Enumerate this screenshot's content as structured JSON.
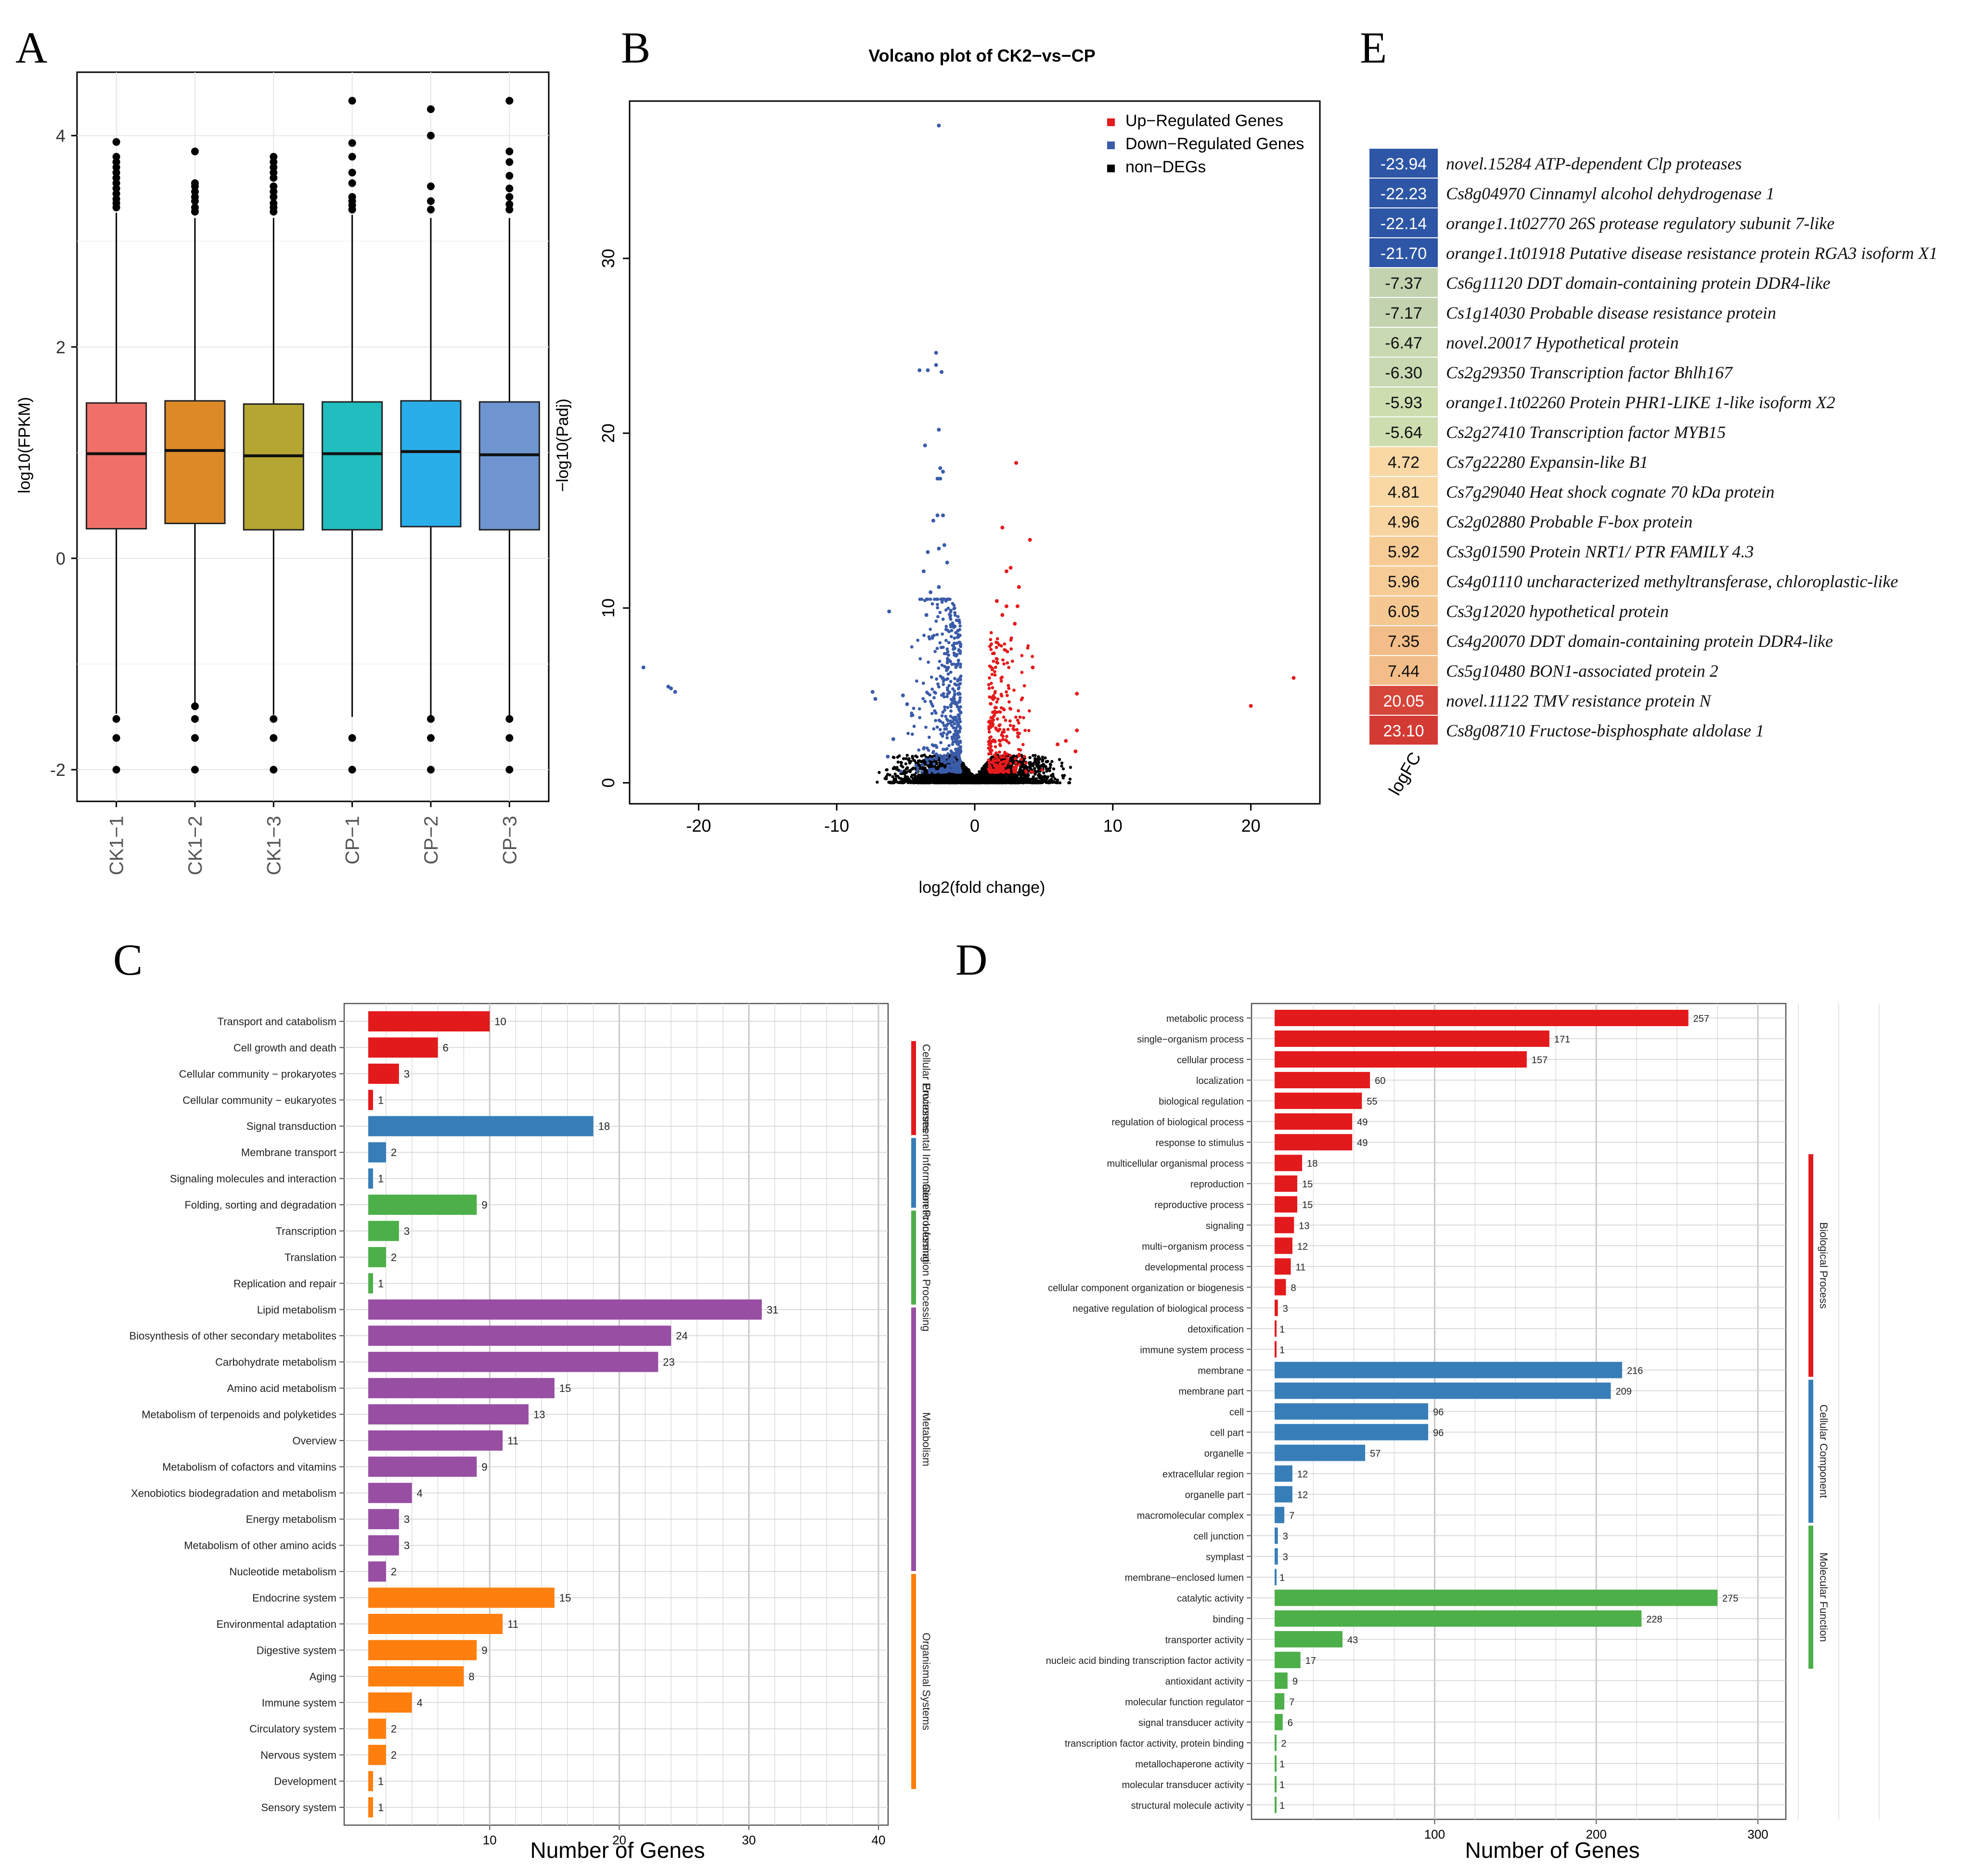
{
  "colors": {
    "box": [
      "#F07069",
      "#DC8A28",
      "#B5A532",
      "#21BDBF",
      "#2AAEE9",
      "#6E95D0"
    ],
    "up": "#E41A1C",
    "down": "#3A5BA8",
    "nondeg": "#000000",
    "kegg_groups": [
      "#E31A1C",
      "#377EB8",
      "#4DAF4A",
      "#984EA3",
      "#FF7F0E"
    ],
    "go_groups": [
      "#E31A1C",
      "#377EB8",
      "#4DAF4A"
    ]
  },
  "chart_data": [
    {
      "id": "A",
      "type": "box",
      "panel_label": "A",
      "ylabel": "log10(FPKM)",
      "ylim": [
        -2.3,
        4.6
      ],
      "yticks": [
        -2,
        0,
        2,
        4
      ],
      "categories": [
        "CK1−1",
        "CK1−2",
        "CK1−3",
        "CP−1",
        "CP−2",
        "CP−3"
      ],
      "boxes": [
        {
          "q1": 0.28,
          "median": 0.99,
          "q3": 1.47,
          "low": -1.47,
          "high": 3.27
        },
        {
          "q1": 0.33,
          "median": 1.02,
          "q3": 1.49,
          "low": -1.4,
          "high": 3.22
        },
        {
          "q1": 0.27,
          "median": 0.97,
          "q3": 1.46,
          "low": -1.48,
          "high": 3.22
        },
        {
          "q1": 0.27,
          "median": 0.99,
          "q3": 1.48,
          "low": -1.5,
          "high": 3.25
        },
        {
          "q1": 0.3,
          "median": 1.01,
          "q3": 1.49,
          "low": -1.5,
          "high": 3.22
        },
        {
          "q1": 0.27,
          "median": 0.98,
          "q3": 1.48,
          "low": -1.5,
          "high": 3.22
        }
      ],
      "outliers_high": [
        [
          3.32,
          3.36,
          3.4,
          3.45,
          3.5,
          3.55,
          3.6,
          3.65,
          3.7,
          3.75,
          3.8,
          3.94
        ],
        [
          3.28,
          3.32,
          3.38,
          3.42,
          3.47,
          3.52,
          3.55,
          3.85
        ],
        [
          3.28,
          3.32,
          3.36,
          3.42,
          3.47,
          3.52,
          3.6,
          3.65,
          3.7,
          3.75,
          3.8
        ],
        [
          3.3,
          3.34,
          3.38,
          3.42,
          3.55,
          3.65,
          3.8,
          3.93,
          4.33
        ],
        [
          3.3,
          3.38,
          3.52,
          4.0,
          4.25
        ],
        [
          3.3,
          3.35,
          3.42,
          3.5,
          3.62,
          3.75,
          3.85,
          4.33
        ]
      ],
      "outliers_low": [
        [
          -1.52,
          -1.7,
          -2.0
        ],
        [
          -1.4,
          -1.52,
          -1.7,
          -2.0
        ],
        [
          -1.52,
          -1.7,
          -2.0
        ],
        [
          -1.7,
          -2.0
        ],
        [
          -1.52,
          -1.7,
          -2.0
        ],
        [
          -1.52,
          -1.7,
          -2.0
        ]
      ]
    },
    {
      "id": "B",
      "type": "scatter",
      "panel_label": "B",
      "title": "Volcano plot of CK2−vs−CP",
      "xlabel": "log2(fold change)",
      "ylabel": "−log10(Padj)",
      "xlim": [
        -25,
        25
      ],
      "ylim": [
        -1.2,
        39
      ],
      "xticks": [
        -20,
        -10,
        0,
        10,
        20
      ],
      "yticks": [
        0,
        10,
        20,
        30
      ],
      "legend": [
        "Up−Regulated Genes",
        "Down−Regulated Genes",
        "non−DEGs"
      ],
      "legend_position": "top-right",
      "down_points": [
        [
          -2.6,
          37.6
        ],
        [
          -2.8,
          24.6
        ],
        [
          -2.8,
          23.9
        ],
        [
          -4.0,
          23.6
        ],
        [
          -3.4,
          23.6
        ],
        [
          -2.4,
          23.5
        ],
        [
          -2.6,
          20.2
        ],
        [
          -3.6,
          19.3
        ],
        [
          -2.5,
          18.0
        ],
        [
          -2.3,
          17.8
        ],
        [
          -2.5,
          17.4
        ],
        [
          -2.7,
          17.4
        ],
        [
          -2.7,
          15.3
        ],
        [
          -2.3,
          15.3
        ],
        [
          -3.0,
          15.0
        ],
        [
          -2.2,
          13.6
        ],
        [
          -2.6,
          13.4
        ],
        [
          -3.4,
          13.2
        ],
        [
          -2.0,
          12.6
        ],
        [
          -3.7,
          12.1
        ],
        [
          -2.6,
          11.2
        ],
        [
          -3.2,
          10.9
        ],
        [
          -2.3,
          10.5
        ],
        [
          -6.2,
          9.8
        ],
        [
          -3.5,
          9.6
        ],
        [
          -24.0,
          6.6
        ],
        [
          -22.2,
          5.5
        ],
        [
          -22.0,
          5.4
        ],
        [
          -21.7,
          5.2
        ],
        [
          -7.4,
          5.2
        ],
        [
          -7.2,
          4.8
        ],
        [
          -5.2,
          5.0
        ],
        [
          -4.9,
          4.5
        ],
        [
          -5.9,
          2.5
        ],
        [
          -6.3,
          1.5
        ]
      ],
      "up_points": [
        [
          3.0,
          18.3
        ],
        [
          2.0,
          14.6
        ],
        [
          4.0,
          13.9
        ],
        [
          2.6,
          12.3
        ],
        [
          2.3,
          12.1
        ],
        [
          3.2,
          11.2
        ],
        [
          1.6,
          10.4
        ],
        [
          2.3,
          10.1
        ],
        [
          3.1,
          10.1
        ],
        [
          2.0,
          9.6
        ],
        [
          2.9,
          9.1
        ],
        [
          4.2,
          6.6
        ],
        [
          7.4,
          5.1
        ],
        [
          23.1,
          6.0
        ],
        [
          20.0,
          4.4
        ],
        [
          7.4,
          3.0
        ],
        [
          6.6,
          2.4
        ],
        [
          6.0,
          2.2
        ],
        [
          7.3,
          1.8
        ]
      ],
      "down_cluster": {
        "x_range": [
          -6.0,
          -1.0
        ],
        "y_max": 8.5,
        "count": 520
      },
      "up_cluster": {
        "x_range": [
          1.0,
          5.5
        ],
        "y_max": 8.0,
        "count": 300
      },
      "nondeg_cluster": {
        "x_range": [
          -8.5,
          7.0
        ],
        "y_max": 1.6,
        "count": 2600
      }
    },
    {
      "id": "E",
      "type": "table",
      "panel_label": "E",
      "color_label": "logFC",
      "rows": [
        {
          "value": "-23.94",
          "gene": "novel.15284",
          "desc": "ATP-dependent Clp proteases",
          "color": "#2E56A6"
        },
        {
          "value": "-22.23",
          "gene": "Cs8g04970",
          "desc": "Cinnamyl alcohol dehydrogenase 1",
          "color": "#2E56A6"
        },
        {
          "value": "-22.14",
          "gene": "orange1.1t02770",
          "desc": "26S protease regulatory subunit 7-like",
          "color": "#2E56A6"
        },
        {
          "value": "-21.70",
          "gene": "orange1.1t01918",
          "desc": "Putative disease resistance protein RGA3 isoform X1",
          "color": "#2E56A6"
        },
        {
          "value": "-7.37",
          "gene": "Cs6g11120",
          "desc": "DDT domain-containing protein DDR4-like",
          "color": "#C3D3B0"
        },
        {
          "value": "-7.17",
          "gene": "Cs1g14030",
          "desc": "Probable disease resistance protein",
          "color": "#C3D3B0"
        },
        {
          "value": "-6.47",
          "gene": "novel.20017",
          "desc": "Hypothetical protein",
          "color": "#C9D9B2"
        },
        {
          "value": "-6.30",
          "gene": "Cs2g29350",
          "desc": "Transcription factor Bhlh167",
          "color": "#C9D9B2"
        },
        {
          "value": "-5.93",
          "gene": "orange1.1t02260",
          "desc": "Protein PHR1-LIKE 1-like isoform X2",
          "color": "#CEDDB0"
        },
        {
          "value": "-5.64",
          "gene": "Cs2g27410",
          "desc": "Transcription factor MYB15",
          "color": "#CEDDB0"
        },
        {
          "value": "4.72",
          "gene": "Cs7g22280",
          "desc": "Expansin-like B1",
          "color": "#F9D8A6"
        },
        {
          "value": "4.81",
          "gene": "Cs7g29040",
          "desc": "Heat shock cognate 70 kDa protein",
          "color": "#F9D8A6"
        },
        {
          "value": "4.96",
          "gene": "Cs2g02880",
          "desc": "Probable F-box protein",
          "color": "#F8D4A0"
        },
        {
          "value": "5.92",
          "gene": "Cs3g01590",
          "desc": "Protein NRT1/ PTR FAMILY 4.3",
          "color": "#F6CB96"
        },
        {
          "value": "5.96",
          "gene": "Cs4g01110",
          "desc": "uncharacterized methyltransferase, chloroplastic-like",
          "color": "#F6CB96"
        },
        {
          "value": "6.05",
          "gene": "Cs3g12020",
          "desc": "hypothetical protein",
          "color": "#F5C892"
        },
        {
          "value": "7.35",
          "gene": "Cs4g20070",
          "desc": "DDT domain-containing protein DDR4-like",
          "color": "#F2BD88"
        },
        {
          "value": "7.44",
          "gene": "Cs5g10480",
          "desc": "BON1-associated protein 2",
          "color": "#F2BD88"
        },
        {
          "value": "20.05",
          "gene": "novel.11122",
          "desc": "TMV resistance protein N",
          "color": "#D6453A"
        },
        {
          "value": "23.10",
          "gene": "Cs8g08710",
          "desc": "Fructose-bisphosphate aldolase 1",
          "color": "#D33A33"
        }
      ]
    },
    {
      "id": "C",
      "type": "bar",
      "orientation": "horizontal",
      "panel_label": "C",
      "xlabel": "Number of Genes",
      "xticks": [
        10,
        20,
        30,
        40
      ],
      "groups": [
        "Cellular Processes",
        "Environmental Information Processing",
        "Genetic Information Processing",
        "Metabolism",
        "Organismal Systems"
      ],
      "categories": [
        "Transport and catabolism",
        "Cell growth and death",
        "Cellular community − prokaryotes",
        "Cellular community − eukaryotes",
        "Signal transduction",
        "Membrane transport",
        "Signaling molecules and interaction",
        "Folding, sorting and degradation",
        "Transcription",
        "Translation",
        "Replication and repair",
        "Lipid metabolism",
        "Biosynthesis of other secondary metabolites",
        "Carbohydrate metabolism",
        "Amino acid metabolism",
        "Metabolism of terpenoids and polyketides",
        "Overview",
        "Metabolism of cofactors and vitamins",
        "Xenobiotics biodegradation and metabolism",
        "Energy metabolism",
        "Metabolism of other amino acids",
        "Nucleotide metabolism",
        "Endocrine system",
        "Environmental adaptation",
        "Digestive system",
        "Aging",
        "Immune system",
        "Circulatory system",
        "Nervous system",
        "Development",
        "Sensory system"
      ],
      "values": [
        10,
        6,
        3,
        1,
        18,
        2,
        1,
        9,
        3,
        2,
        1,
        31,
        24,
        23,
        15,
        13,
        11,
        9,
        4,
        3,
        3,
        2,
        15,
        11,
        9,
        8,
        4,
        2,
        2,
        1,
        1
      ],
      "group_index": [
        0,
        0,
        0,
        0,
        1,
        1,
        1,
        2,
        2,
        2,
        2,
        3,
        3,
        3,
        3,
        3,
        3,
        3,
        3,
        3,
        3,
        3,
        4,
        4,
        4,
        4,
        4,
        4,
        4,
        4,
        4
      ]
    },
    {
      "id": "D",
      "type": "bar",
      "orientation": "horizontal",
      "panel_label": "D",
      "xlabel": "Number of Genes",
      "xticks": [
        100,
        200,
        300
      ],
      "groups": [
        "Biological Process",
        "Cellular Component",
        "Molecular Function"
      ],
      "categories": [
        "metabolic process",
        "single−organism process",
        "cellular process",
        "localization",
        "biological regulation",
        "regulation of biological process",
        "response to stimulus",
        "multicellular organismal process",
        "reproduction",
        "reproductive process",
        "signaling",
        "multi−organism process",
        "developmental process",
        "cellular component organization or biogenesis",
        "negative regulation of biological process",
        "detoxification",
        "immune system process",
        "membrane",
        "membrane part",
        "cell",
        "cell part",
        "organelle",
        "extracellular region",
        "organelle part",
        "macromolecular complex",
        "cell junction",
        "symplast",
        "membrane−enclosed lumen",
        "catalytic activity",
        "binding",
        "transporter activity",
        "nucleic acid binding transcription factor activity",
        "antioxidant activity",
        "molecular function regulator",
        "signal transducer activity",
        "transcription factor activity, protein binding",
        "metallochaperone activity",
        "molecular transducer activity",
        "structural molecule activity"
      ],
      "values": [
        257,
        171,
        157,
        60,
        55,
        49,
        49,
        18,
        15,
        15,
        13,
        12,
        11,
        8,
        3,
        1,
        1,
        216,
        209,
        96,
        96,
        57,
        12,
        12,
        7,
        3,
        3,
        1,
        275,
        228,
        43,
        17,
        9,
        7,
        6,
        2,
        1,
        1,
        1
      ],
      "group_index": [
        0,
        0,
        0,
        0,
        0,
        0,
        0,
        0,
        0,
        0,
        0,
        0,
        0,
        0,
        0,
        0,
        0,
        1,
        1,
        1,
        1,
        1,
        1,
        1,
        1,
        1,
        1,
        1,
        2,
        2,
        2,
        2,
        2,
        2,
        2,
        2,
        2,
        2,
        2
      ]
    }
  ]
}
